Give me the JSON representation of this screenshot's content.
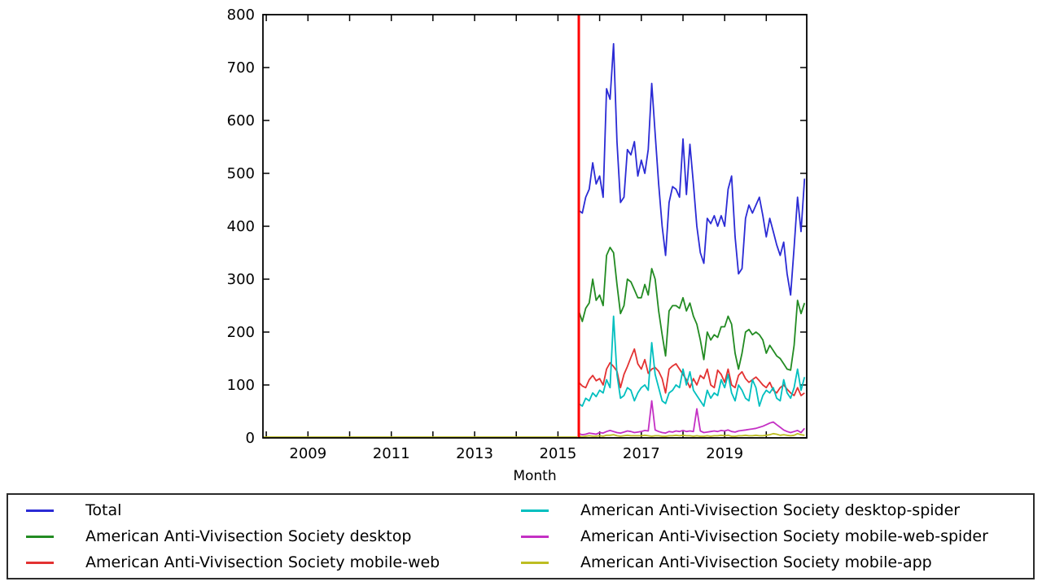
{
  "chart_data": {
    "type": "line",
    "title": "",
    "xlabel": "Month",
    "ylim": [
      0,
      800
    ],
    "y_ticks": [
      0,
      100,
      200,
      300,
      400,
      500,
      600,
      700,
      800
    ],
    "x_years_ticks": [
      2008,
      2009,
      2010,
      2011,
      2012,
      2013,
      2014,
      2015,
      2016,
      2017,
      2018,
      2019,
      2020
    ],
    "x_tick_label_years": [
      2009,
      2011,
      2013,
      2015,
      2017,
      2019
    ],
    "x_tick_labels": [
      "2009",
      "2011",
      "2013",
      "2015",
      "2017",
      "2019"
    ],
    "grid": false,
    "legend_position": "bottom",
    "data_start_month": "2015-07",
    "data_end_month": "2020-12",
    "pre_data_zero_span": {
      "from": "2008-01",
      "to": "2015-06",
      "value": 0
    },
    "annotation_vline": {
      "x_year": 2015.5,
      "color": "#ff0000"
    },
    "axis_color": "#000000",
    "series": [
      {
        "name": "Total",
        "color": "#2b2bd5",
        "values": [
          430,
          425,
          455,
          470,
          520,
          480,
          495,
          455,
          660,
          640,
          745,
          560,
          445,
          455,
          545,
          535,
          560,
          495,
          525,
          500,
          545,
          670,
          575,
          480,
          400,
          345,
          445,
          475,
          470,
          455,
          565,
          460,
          555,
          480,
          400,
          350,
          330,
          415,
          405,
          420,
          400,
          420,
          400,
          470,
          495,
          380,
          310,
          320,
          415,
          440,
          425,
          440,
          455,
          420,
          380,
          415,
          390,
          365,
          345,
          370,
          310,
          270,
          360,
          455,
          390,
          490
        ]
      },
      {
        "name": "American Anti-Vivisection Society desktop",
        "color": "#228b22",
        "values": [
          240,
          220,
          245,
          255,
          300,
          260,
          270,
          250,
          345,
          360,
          350,
          290,
          235,
          250,
          300,
          295,
          280,
          265,
          265,
          290,
          270,
          320,
          300,
          240,
          195,
          155,
          240,
          250,
          250,
          245,
          265,
          240,
          255,
          230,
          215,
          185,
          148,
          200,
          185,
          195,
          190,
          210,
          210,
          230,
          215,
          160,
          130,
          160,
          200,
          205,
          195,
          200,
          195,
          185,
          160,
          175,
          165,
          155,
          150,
          140,
          130,
          128,
          175,
          260,
          235,
          255
        ]
      },
      {
        "name": "American Anti-Vivisection Society mobile-web",
        "color": "#e33232",
        "values": [
          105,
          98,
          95,
          110,
          118,
          108,
          112,
          100,
          130,
          142,
          135,
          126,
          95,
          120,
          135,
          152,
          168,
          140,
          130,
          148,
          122,
          130,
          133,
          126,
          112,
          85,
          130,
          136,
          140,
          130,
          120,
          110,
          95,
          112,
          100,
          118,
          112,
          130,
          100,
          95,
          128,
          120,
          105,
          130,
          100,
          95,
          118,
          125,
          112,
          105,
          110,
          115,
          108,
          100,
          95,
          105,
          90,
          85,
          95,
          100,
          92,
          85,
          80,
          95,
          80,
          85
        ]
      },
      {
        "name": "American Anti-Vivisection Society desktop-spider",
        "color": "#00bfbf",
        "values": [
          65,
          60,
          75,
          70,
          85,
          78,
          90,
          85,
          110,
          95,
          230,
          120,
          75,
          80,
          95,
          90,
          70,
          85,
          95,
          100,
          90,
          180,
          120,
          95,
          70,
          65,
          85,
          90,
          100,
          95,
          130,
          100,
          125,
          90,
          80,
          70,
          60,
          90,
          75,
          85,
          80,
          110,
          95,
          120,
          85,
          70,
          100,
          90,
          75,
          70,
          110,
          95,
          60,
          80,
          90,
          85,
          95,
          75,
          70,
          110,
          85,
          75,
          95,
          130,
          90,
          115
        ]
      },
      {
        "name": "American Anti-Vivisection Society mobile-web-spider",
        "color": "#c430c4",
        "values": [
          8,
          6,
          7,
          9,
          8,
          7,
          10,
          9,
          12,
          14,
          12,
          10,
          9,
          11,
          13,
          12,
          10,
          11,
          12,
          14,
          13,
          70,
          15,
          12,
          10,
          9,
          12,
          11,
          13,
          12,
          14,
          12,
          13,
          12,
          55,
          13,
          10,
          11,
          12,
          13,
          12,
          14,
          13,
          15,
          12,
          11,
          13,
          14,
          15,
          16,
          17,
          18,
          20,
          22,
          25,
          28,
          30,
          25,
          20,
          15,
          12,
          10,
          12,
          14,
          10,
          18
        ]
      },
      {
        "name": "American Anti-Vivisection Society mobile-app",
        "color": "#bdbd22",
        "values": [
          3,
          2,
          3,
          4,
          3,
          3,
          4,
          3,
          5,
          5,
          6,
          4,
          3,
          4,
          5,
          4,
          4,
          4,
          4,
          5,
          4,
          3,
          4,
          4,
          3,
          3,
          4,
          4,
          5,
          4,
          5,
          4,
          4,
          3,
          4,
          3,
          3,
          4,
          3,
          4,
          4,
          5,
          4,
          5,
          3,
          3,
          4,
          4,
          5,
          4,
          4,
          5,
          4,
          4,
          5,
          6,
          8,
          7,
          5,
          6,
          5,
          4,
          5,
          8,
          6,
          5
        ]
      }
    ]
  }
}
